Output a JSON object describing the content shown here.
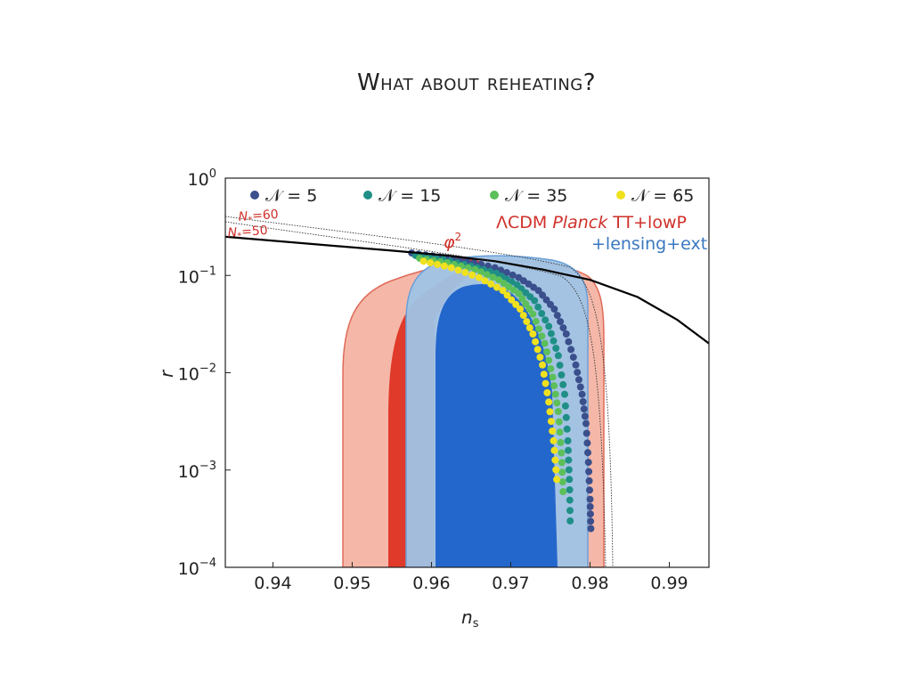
{
  "slide": {
    "title": "What about reheating?"
  },
  "chart_data": {
    "type": "scatter",
    "xlabel": "n",
    "xlabel_sub": "s",
    "ylabel": "r",
    "xlim": [
      0.934,
      0.995
    ],
    "ylim": [
      0.0001,
      1
    ],
    "y_scale": "log",
    "grid": false,
    "x_ticks": [
      0.94,
      0.95,
      0.96,
      0.97,
      0.98,
      0.99
    ],
    "x_tick_labels": [
      "0.94",
      "0.95",
      "0.96",
      "0.97",
      "0.98",
      "0.99"
    ],
    "y_ticks": [
      {
        "value": 1,
        "base": "10",
        "exp": "0"
      },
      {
        "value": 0.1,
        "base": "10",
        "exp": "−1"
      },
      {
        "value": 0.01,
        "base": "10",
        "exp": "−2"
      },
      {
        "value": 0.001,
        "base": "10",
        "exp": "−3"
      },
      {
        "value": 0.0001,
        "base": "10",
        "exp": "−4"
      }
    ],
    "legend": [
      {
        "label_pre": "𝒩 = 5",
        "color": "#3a4f8c"
      },
      {
        "label_pre": "𝒩 = 15",
        "color": "#1f8f86"
      },
      {
        "label_pre": "𝒩 = 35",
        "color": "#5cbf5a"
      },
      {
        "label_pre": "𝒩 = 65",
        "color": "#f0e11f"
      }
    ],
    "legend_position": "top",
    "annotations": {
      "constraint_line1": "ΛCDM Planck TT+lowP",
      "constraint_line1_parts": [
        "ΛCDM ",
        "Planck",
        " TT+lowP"
      ],
      "constraint_line2": "+lensing+ext",
      "phi2": "φ",
      "phi2_exp": "2",
      "nstar60": "N",
      "nstar60_rest": "=60",
      "nstar50": "N",
      "nstar50_rest": "=50",
      "nstar_sub": "*"
    },
    "colors": {
      "planck_outer": "#f5b8a8",
      "planck_inner": "#e03a2b",
      "planck_edge": "#e06a5a",
      "lensing_outer": "#9fc3e6",
      "lensing_inner": "#2467cc",
      "lensing_edge": "#6a9fd8",
      "overlap": "#9bb6d3",
      "model_line": "#000000",
      "red_text": "#d0302a",
      "blue_text": "#3a78c0"
    },
    "model_curve_phi2": {
      "ns": [
        0.934,
        0.945,
        0.955,
        0.962,
        0.968,
        0.974,
        0.98,
        0.986,
        0.991,
        0.995
      ],
      "r": [
        0.25,
        0.21,
        0.18,
        0.16,
        0.14,
        0.115,
        0.09,
        0.06,
        0.035,
        0.02
      ]
    },
    "series": [
      {
        "name": "𝒩 = 5",
        "color": "#3a4f8c",
        "ns": [
          0.9575,
          0.961,
          0.9645,
          0.968,
          0.971,
          0.9735,
          0.9755,
          0.977,
          0.9782,
          0.979,
          0.9795,
          0.9798,
          0.98,
          0.9801
        ],
        "r": [
          0.17,
          0.155,
          0.14,
          0.12,
          0.095,
          0.07,
          0.045,
          0.025,
          0.012,
          0.006,
          0.003,
          0.0012,
          0.0005,
          0.00025
        ]
      },
      {
        "name": "𝒩 = 15",
        "color": "#1f8f86",
        "ns": [
          0.958,
          0.9615,
          0.965,
          0.9682,
          0.9708,
          0.973,
          0.9748,
          0.976,
          0.9768,
          0.9772,
          0.9774,
          0.9775
        ],
        "r": [
          0.16,
          0.145,
          0.125,
          0.105,
          0.08,
          0.055,
          0.03,
          0.015,
          0.006,
          0.002,
          0.0008,
          0.0003
        ]
      },
      {
        "name": "𝒩 = 35",
        "color": "#5cbf5a",
        "ns": [
          0.9585,
          0.962,
          0.9655,
          0.9685,
          0.971,
          0.9728,
          0.9743,
          0.9753,
          0.976,
          0.9764,
          0.9766
        ],
        "r": [
          0.15,
          0.135,
          0.115,
          0.09,
          0.065,
          0.04,
          0.02,
          0.009,
          0.004,
          0.0015,
          0.0006
        ]
      },
      {
        "name": "𝒩 = 65",
        "color": "#f0e11f",
        "ns": [
          0.959,
          0.9625,
          0.966,
          0.969,
          0.9712,
          0.9728,
          0.974,
          0.9748,
          0.9754,
          0.9758
        ],
        "r": [
          0.14,
          0.12,
          0.095,
          0.07,
          0.045,
          0.025,
          0.012,
          0.005,
          0.002,
          0.0008
        ]
      }
    ]
  }
}
